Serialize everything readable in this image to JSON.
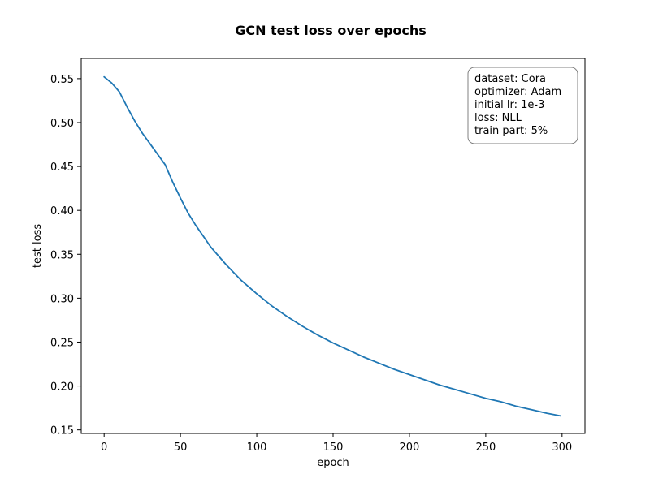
{
  "chart_data": {
    "type": "line",
    "title": "GCN test loss over epochs",
    "xlabel": "epoch",
    "ylabel": "test loss",
    "xlim": [
      -15,
      315
    ],
    "ylim": [
      0.146,
      0.573
    ],
    "xticks": [
      0,
      50,
      100,
      150,
      200,
      250,
      300
    ],
    "yticks": [
      0.15,
      0.2,
      0.25,
      0.3,
      0.35,
      0.4,
      0.45,
      0.5,
      0.55
    ],
    "grid": false,
    "line_color": "#1f77b4",
    "annotation": {
      "position": "top-right",
      "lines": [
        "dataset: Cora",
        "optimizer: Adam",
        "initial lr: 1e-3",
        "loss: NLL",
        "train part: 5%"
      ]
    },
    "series": [
      {
        "x": [
          0,
          5,
          10,
          15,
          20,
          25,
          30,
          35,
          40,
          45,
          50,
          55,
          60,
          70,
          80,
          90,
          100,
          110,
          120,
          130,
          140,
          150,
          160,
          170,
          180,
          190,
          200,
          210,
          220,
          230,
          240,
          250,
          260,
          270,
          280,
          290,
          299
        ],
        "y": [
          0.552,
          0.545,
          0.535,
          0.518,
          0.502,
          0.488,
          0.476,
          0.464,
          0.452,
          0.432,
          0.414,
          0.397,
          0.383,
          0.358,
          0.338,
          0.32,
          0.305,
          0.291,
          0.279,
          0.268,
          0.258,
          0.249,
          0.241,
          0.233,
          0.226,
          0.219,
          0.213,
          0.207,
          0.201,
          0.196,
          0.191,
          0.186,
          0.182,
          0.177,
          0.173,
          0.169,
          0.166
        ]
      }
    ]
  }
}
